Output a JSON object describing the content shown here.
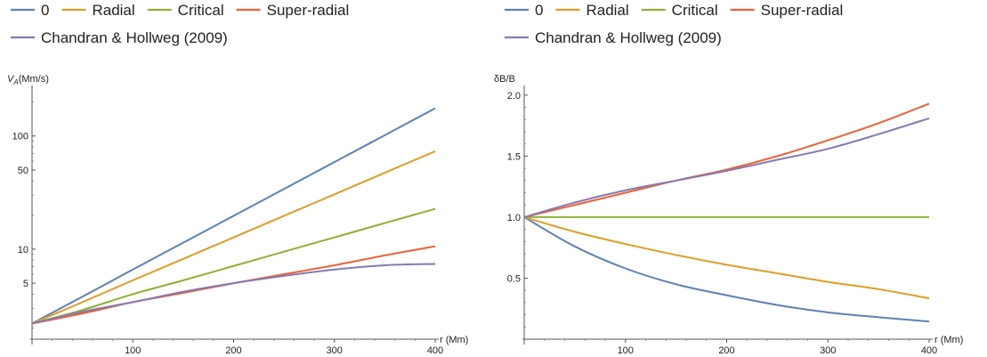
{
  "chart_data": [
    {
      "type": "line",
      "title": "",
      "xlabel": "r (Mm)",
      "ylabel": "V_A(Mm/s)",
      "ylabel_parts": {
        "main": "V",
        "sub": "A",
        "rest": "(Mm/s)"
      },
      "xlim": [
        0,
        400
      ],
      "ylim": [
        1.6,
        260
      ],
      "yscale": "log",
      "xticks": [
        100,
        200,
        300,
        400
      ],
      "xtick_labels": [
        "100",
        "200",
        "300",
        "400"
      ],
      "yticks": [
        5,
        10,
        50,
        100
      ],
      "ytick_labels": [
        "5",
        "10",
        "50",
        "100"
      ],
      "grid": false,
      "legend_position": "top",
      "legend_rows": [
        [
          "0",
          "Radial",
          "Critical",
          "Super-radial"
        ],
        [
          "Chandran & Hollweg (2009)"
        ]
      ],
      "x": [
        0,
        50,
        100,
        150,
        200,
        250,
        300,
        350,
        400
      ],
      "series": [
        {
          "name": "0",
          "color": "#5E81B5",
          "values": [
            2.2,
            3.8,
            6.6,
            11.4,
            19.7,
            34.0,
            58.8,
            101.6,
            175.6
          ]
        },
        {
          "name": "Radial",
          "color": "#E19C24",
          "values": [
            2.2,
            3.4,
            5.3,
            8.2,
            12.7,
            19.7,
            30.5,
            47.3,
            73.2
          ]
        },
        {
          "name": "Critical",
          "color": "#8FB032",
          "values": [
            2.2,
            2.9,
            4.0,
            5.3,
            7.1,
            9.5,
            12.7,
            17.0,
            22.7
          ]
        },
        {
          "name": "Super-radial",
          "color": "#EB6235",
          "values": [
            2.2,
            2.7,
            3.4,
            4.1,
            5.0,
            6.0,
            7.2,
            8.8,
            10.6
          ]
        },
        {
          "name": "Chandran & Hollweg (2009)",
          "color": "#8778B3",
          "values": [
            2.2,
            2.8,
            3.4,
            4.2,
            5.0,
            5.8,
            6.6,
            7.2,
            7.4
          ]
        }
      ]
    },
    {
      "type": "line",
      "title": "",
      "xlabel": "r (Mm)",
      "ylabel": "δB/B",
      "xlim": [
        0,
        400
      ],
      "ylim": [
        0.0,
        2.05
      ],
      "yscale": "linear",
      "xticks": [
        100,
        200,
        300,
        400
      ],
      "xtick_labels": [
        "100",
        "200",
        "300",
        "400"
      ],
      "yticks": [
        0.5,
        1.0,
        1.5,
        2.0
      ],
      "ytick_labels": [
        "0.5",
        "1.0",
        "1.5",
        "2.0"
      ],
      "grid": false,
      "legend_position": "top",
      "legend_rows": [
        [
          "0",
          "Radial",
          "Critical",
          "Super-radial"
        ],
        [
          "Chandran & Hollweg (2009)"
        ]
      ],
      "x": [
        0,
        50,
        100,
        150,
        200,
        250,
        300,
        350,
        400
      ],
      "series": [
        {
          "name": "0",
          "color": "#5E81B5",
          "values": [
            1.0,
            0.76,
            0.58,
            0.45,
            0.36,
            0.28,
            0.22,
            0.18,
            0.145
          ]
        },
        {
          "name": "Radial",
          "color": "#E19C24",
          "values": [
            1.0,
            0.88,
            0.78,
            0.69,
            0.61,
            0.54,
            0.47,
            0.41,
            0.335
          ]
        },
        {
          "name": "Critical",
          "color": "#8FB032",
          "values": [
            1.0,
            1.0,
            1.0,
            1.0,
            1.0,
            1.0,
            1.0,
            1.0,
            1.0
          ]
        },
        {
          "name": "Super-radial",
          "color": "#EB6235",
          "values": [
            1.0,
            1.1,
            1.2,
            1.3,
            1.39,
            1.5,
            1.63,
            1.77,
            1.93
          ]
        },
        {
          "name": "Chandran & Hollweg (2009)",
          "color": "#8778B3",
          "values": [
            1.0,
            1.12,
            1.22,
            1.3,
            1.38,
            1.47,
            1.56,
            1.68,
            1.81
          ]
        }
      ]
    }
  ]
}
